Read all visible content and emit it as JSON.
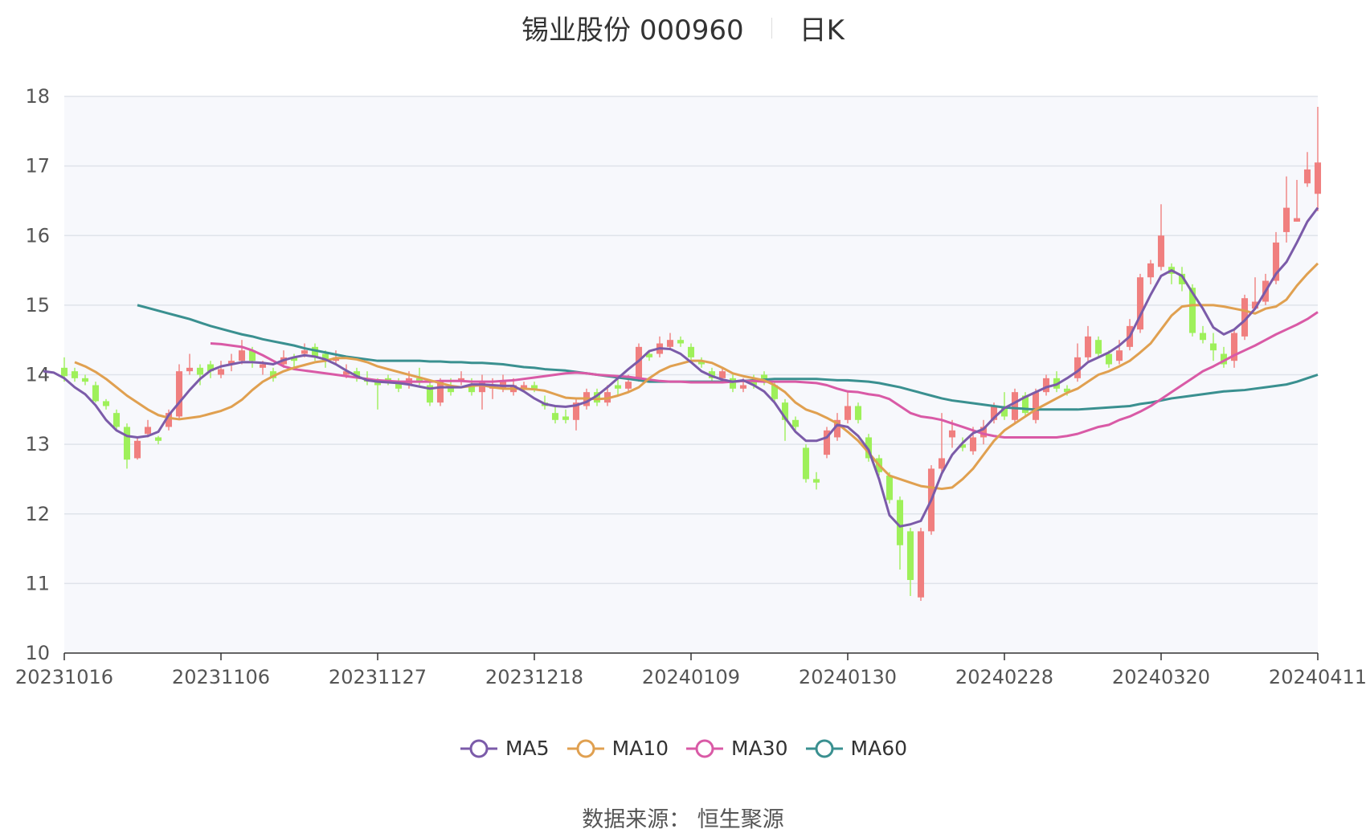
{
  "title": {
    "name": "锡业股份 000960",
    "period": "日K"
  },
  "source": "数据来源： 恒生聚源",
  "colors": {
    "up": "#f07f7f",
    "down": "#9ef05a",
    "MA5": "#7b5ba9",
    "MA10": "#e0a050",
    "MA30": "#d95aa6",
    "MA60": "#3a9090",
    "grid": "#dfe3ea",
    "plot_bg": "#f7f8fc"
  },
  "chart_data": {
    "type": "candlestick",
    "ylim": [
      10,
      18
    ],
    "yticks": [
      18,
      17,
      16,
      15,
      14,
      13,
      12,
      11,
      10
    ],
    "xticks": [
      "20231016",
      "20231106",
      "20231127",
      "20231218",
      "20240109",
      "20240130",
      "20240228",
      "20240320",
      "20240411"
    ],
    "legend": [
      {
        "name": "MA5",
        "color": "#7b5ba9"
      },
      {
        "name": "MA10",
        "color": "#e0a050"
      },
      {
        "name": "MA30",
        "color": "#d95aa6"
      },
      {
        "name": "MA60",
        "color": "#3a9090"
      }
    ],
    "candles": [
      [
        14.1,
        13.98,
        14.25,
        13.9
      ],
      [
        14.05,
        13.95,
        14.1,
        13.9
      ],
      [
        13.95,
        13.9,
        14.0,
        13.85
      ],
      [
        13.85,
        13.62,
        13.9,
        13.6
      ],
      [
        13.62,
        13.55,
        13.65,
        13.5
      ],
      [
        13.45,
        13.25,
        13.5,
        13.2
      ],
      [
        13.25,
        12.78,
        13.3,
        12.65
      ],
      [
        12.8,
        13.05,
        13.1,
        12.78
      ],
      [
        13.15,
        13.25,
        13.35,
        13.1
      ],
      [
        13.1,
        13.05,
        13.12,
        13.0
      ],
      [
        13.25,
        13.45,
        13.5,
        13.2
      ],
      [
        13.4,
        14.05,
        14.15,
        13.35
      ],
      [
        14.05,
        14.1,
        14.3,
        14.0
      ],
      [
        14.1,
        14.0,
        14.15,
        13.85
      ],
      [
        14.15,
        14.05,
        14.2,
        13.95
      ],
      [
        14.0,
        14.08,
        14.2,
        13.95
      ],
      [
        14.15,
        14.2,
        14.3,
        14.05
      ],
      [
        14.2,
        14.35,
        14.5,
        14.15
      ],
      [
        14.35,
        14.2,
        14.4,
        14.1
      ],
      [
        14.1,
        14.15,
        14.2,
        14.0
      ],
      [
        14.05,
        13.95,
        14.1,
        13.9
      ],
      [
        14.15,
        14.25,
        14.35,
        14.1
      ],
      [
        14.25,
        14.2,
        14.3,
        14.1
      ],
      [
        14.3,
        14.35,
        14.45,
        14.25
      ],
      [
        14.4,
        14.25,
        14.45,
        14.2
      ],
      [
        14.3,
        14.2,
        14.35,
        14.1
      ],
      [
        14.2,
        14.25,
        14.35,
        14.15
      ],
      [
        14.0,
        14.05,
        14.15,
        13.95
      ],
      [
        14.05,
        13.95,
        14.1,
        13.9
      ],
      [
        13.95,
        13.9,
        14.05,
        13.85
      ],
      [
        13.9,
        13.85,
        13.95,
        13.5
      ],
      [
        13.95,
        13.9,
        14.0,
        13.85
      ],
      [
        13.9,
        13.8,
        13.95,
        13.75
      ],
      [
        13.85,
        13.95,
        14.05,
        13.8
      ],
      [
        13.95,
        13.9,
        14.1,
        13.85
      ],
      [
        13.85,
        13.6,
        13.9,
        13.55
      ],
      [
        13.6,
        13.9,
        13.95,
        13.55
      ],
      [
        13.85,
        13.75,
        13.95,
        13.7
      ],
      [
        13.9,
        13.95,
        14.05,
        13.85
      ],
      [
        13.85,
        13.75,
        13.95,
        13.7
      ],
      [
        13.75,
        13.9,
        14.0,
        13.5
      ],
      [
        13.8,
        13.85,
        13.95,
        13.65
      ],
      [
        13.8,
        13.9,
        14.0,
        13.75
      ],
      [
        13.75,
        13.85,
        13.95,
        13.7
      ],
      [
        13.8,
        13.85,
        13.9,
        13.75
      ],
      [
        13.85,
        13.8,
        13.9,
        13.75
      ],
      [
        13.6,
        13.55,
        13.7,
        13.5
      ],
      [
        13.45,
        13.35,
        13.55,
        13.3
      ],
      [
        13.4,
        13.35,
        13.5,
        13.3
      ],
      [
        13.35,
        13.6,
        13.65,
        13.2
      ],
      [
        13.55,
        13.75,
        13.8,
        13.5
      ],
      [
        13.75,
        13.6,
        13.8,
        13.55
      ],
      [
        13.6,
        13.75,
        13.85,
        13.55
      ],
      [
        13.85,
        13.8,
        13.95,
        13.7
      ],
      [
        13.8,
        13.9,
        14.0,
        13.75
      ],
      [
        13.95,
        14.4,
        14.45,
        13.9
      ],
      [
        14.3,
        14.25,
        14.35,
        14.2
      ],
      [
        14.3,
        14.45,
        14.55,
        14.25
      ],
      [
        14.4,
        14.5,
        14.6,
        14.35
      ],
      [
        14.5,
        14.45,
        14.55,
        14.4
      ],
      [
        14.4,
        14.25,
        14.45,
        14.2
      ],
      [
        14.2,
        14.15,
        14.25,
        14.1
      ],
      [
        14.05,
        13.95,
        14.1,
        13.9
      ],
      [
        13.95,
        14.05,
        14.1,
        13.9
      ],
      [
        13.95,
        13.8,
        14.0,
        13.75
      ],
      [
        13.8,
        13.85,
        13.95,
        13.75
      ],
      [
        13.9,
        13.85,
        14.0,
        13.8
      ],
      [
        14.0,
        13.9,
        14.05,
        13.85
      ],
      [
        13.85,
        13.65,
        13.9,
        13.6
      ],
      [
        13.6,
        13.35,
        13.65,
        13.05
      ],
      [
        13.35,
        13.25,
        13.4,
        13.2
      ],
      [
        12.95,
        12.5,
        13.0,
        12.45
      ],
      [
        12.5,
        12.45,
        12.6,
        12.35
      ],
      [
        12.85,
        13.2,
        13.25,
        12.8
      ],
      [
        13.1,
        13.35,
        13.45,
        13.05
      ],
      [
        13.35,
        13.55,
        13.75,
        13.3
      ],
      [
        13.55,
        13.35,
        13.6,
        13.3
      ],
      [
        13.1,
        12.8,
        13.15,
        12.75
      ],
      [
        12.8,
        12.6,
        12.85,
        12.55
      ],
      [
        12.55,
        12.2,
        12.6,
        12.15
      ],
      [
        12.2,
        11.55,
        12.25,
        11.2
      ],
      [
        11.75,
        11.05,
        11.8,
        10.82
      ],
      [
        10.8,
        11.75,
        11.8,
        10.75
      ],
      [
        11.75,
        12.65,
        12.7,
        11.7
      ],
      [
        12.65,
        12.8,
        13.45,
        12.6
      ],
      [
        13.1,
        13.2,
        13.35,
        12.95
      ],
      [
        13.0,
        12.95,
        13.1,
        12.9
      ],
      [
        12.9,
        13.1,
        13.25,
        12.85
      ],
      [
        13.1,
        13.25,
        13.35,
        13.0
      ],
      [
        13.35,
        13.55,
        13.6,
        13.3
      ],
      [
        13.55,
        13.4,
        13.75,
        13.35
      ],
      [
        13.35,
        13.75,
        13.8,
        13.3
      ],
      [
        13.7,
        13.45,
        13.75,
        13.4
      ],
      [
        13.35,
        13.75,
        13.8,
        13.3
      ],
      [
        13.75,
        13.95,
        14.0,
        13.7
      ],
      [
        13.95,
        13.8,
        14.05,
        13.75
      ],
      [
        13.8,
        13.75,
        13.85,
        13.7
      ],
      [
        13.95,
        14.25,
        14.45,
        13.9
      ],
      [
        14.25,
        14.55,
        14.7,
        14.2
      ],
      [
        14.5,
        14.3,
        14.55,
        14.25
      ],
      [
        14.3,
        14.15,
        14.35,
        14.1
      ],
      [
        14.2,
        14.35,
        14.5,
        14.15
      ],
      [
        14.4,
        14.7,
        14.8,
        14.35
      ],
      [
        14.65,
        15.4,
        15.45,
        14.6
      ],
      [
        15.4,
        15.6,
        15.65,
        15.3
      ],
      [
        15.55,
        16.0,
        16.45,
        15.5
      ],
      [
        15.55,
        15.45,
        15.6,
        15.3
      ],
      [
        15.45,
        15.3,
        15.55,
        15.2
      ],
      [
        15.25,
        14.6,
        15.3,
        14.55
      ],
      [
        14.6,
        14.5,
        14.7,
        14.45
      ],
      [
        14.45,
        14.35,
        14.6,
        14.2
      ],
      [
        14.3,
        14.15,
        14.4,
        14.1
      ],
      [
        14.2,
        14.6,
        14.65,
        14.1
      ],
      [
        14.55,
        15.1,
        15.15,
        14.5
      ],
      [
        14.95,
        15.05,
        15.4,
        14.95
      ],
      [
        15.05,
        15.35,
        15.45,
        15.0
      ],
      [
        15.35,
        15.9,
        16.05,
        15.3
      ],
      [
        16.05,
        16.4,
        16.85,
        15.9
      ],
      [
        16.2,
        16.25,
        16.8,
        16.2
      ],
      [
        16.75,
        16.95,
        17.2,
        16.7
      ],
      [
        16.6,
        17.05,
        17.85,
        16.35
      ]
    ],
    "MA5": [
      14.05,
      14.03,
      13.95,
      13.82,
      13.72,
      13.56,
      13.35,
      13.2,
      13.12,
      13.1,
      13.12,
      13.18,
      13.42,
      13.6,
      13.78,
      13.94,
      14.06,
      14.12,
      14.15,
      14.18,
      14.18,
      14.17,
      14.15,
      14.21,
      14.25,
      14.28,
      14.26,
      14.22,
      14.15,
      14.06,
      13.98,
      13.92,
      13.9,
      13.89,
      13.88,
      13.86,
      13.83,
      13.8,
      13.82,
      13.82,
      13.82,
      13.86,
      13.86,
      13.85,
      13.84,
      13.84,
      13.76,
      13.66,
      13.58,
      13.55,
      13.54,
      13.56,
      13.61,
      13.7,
      13.82,
      13.95,
      14.08,
      14.2,
      14.34,
      14.38,
      14.37,
      14.3,
      14.18,
      14.05,
      13.98,
      13.93,
      13.9,
      13.92,
      13.85,
      13.76,
      13.6,
      13.38,
      13.18,
      13.05,
      13.05,
      13.1,
      13.28,
      13.25,
      13.12,
      12.92,
      12.5,
      11.98,
      11.82,
      11.85,
      11.9,
      12.2,
      12.58,
      12.85,
      13.02,
      13.16,
      13.22,
      13.38,
      13.52,
      13.6,
      13.68,
      13.75,
      13.82,
      13.86,
      13.95,
      14.05,
      14.18,
      14.25,
      14.32,
      14.42,
      14.55,
      14.85,
      15.15,
      15.42,
      15.5,
      15.42,
      15.18,
      14.95,
      14.68,
      14.58,
      14.65,
      14.78,
      14.95,
      15.2,
      15.45,
      15.62,
      15.9,
      16.2,
      16.4
    ],
    "MA10": [
      14.18,
      14.12,
      14.04,
      13.94,
      13.82,
      13.7,
      13.6,
      13.5,
      13.42,
      13.38,
      13.36,
      13.38,
      13.4,
      13.44,
      13.48,
      13.54,
      13.64,
      13.78,
      13.9,
      13.98,
      14.05,
      14.1,
      14.14,
      14.18,
      14.2,
      14.24,
      14.24,
      14.22,
      14.18,
      14.12,
      14.08,
      14.04,
      14.0,
      13.96,
      13.92,
      13.88,
      13.84,
      13.82,
      13.84,
      13.85,
      13.82,
      13.8,
      13.8,
      13.8,
      13.79,
      13.77,
      13.72,
      13.67,
      13.66,
      13.66,
      13.65,
      13.66,
      13.7,
      13.75,
      13.82,
      13.95,
      14.05,
      14.12,
      14.16,
      14.2,
      14.2,
      14.17,
      14.1,
      14.02,
      13.98,
      13.95,
      13.92,
      13.85,
      13.75,
      13.6,
      13.5,
      13.45,
      13.38,
      13.3,
      13.18,
      13.05,
      12.88,
      12.7,
      12.55,
      12.5,
      12.45,
      12.4,
      12.38,
      12.36,
      12.38,
      12.5,
      12.65,
      12.85,
      13.05,
      13.2,
      13.3,
      13.4,
      13.5,
      13.58,
      13.66,
      13.74,
      13.8,
      13.9,
      14.0,
      14.05,
      14.12,
      14.2,
      14.32,
      14.45,
      14.65,
      14.85,
      14.98,
      15.0,
      15.0,
      15.0,
      14.98,
      14.95,
      14.92,
      14.88,
      14.95,
      14.98,
      15.08,
      15.28,
      15.45,
      15.6
    ],
    "MA30": [
      14.45,
      14.44,
      14.42,
      14.4,
      14.35,
      14.28,
      14.2,
      14.12,
      14.08,
      14.06,
      14.04,
      14.02,
      14.0,
      13.98,
      13.96,
      13.94,
      13.92,
      13.91,
      13.9,
      13.9,
      13.9,
      13.9,
      13.91,
      13.91,
      13.91,
      13.9,
      13.9,
      13.9,
      13.91,
      13.92,
      13.94,
      13.96,
      13.98,
      14.0,
      14.02,
      14.03,
      14.02,
      14.0,
      13.99,
      13.98,
      13.97,
      13.95,
      13.93,
      13.91,
      13.9,
      13.9,
      13.89,
      13.89,
      13.89,
      13.89,
      13.9,
      13.91,
      13.91,
      13.9,
      13.9,
      13.9,
      13.9,
      13.89,
      13.88,
      13.85,
      13.8,
      13.76,
      13.75,
      13.72,
      13.7,
      13.65,
      13.55,
      13.45,
      13.4,
      13.38,
      13.35,
      13.3,
      13.25,
      13.2,
      13.15,
      13.12,
      13.1,
      13.1,
      13.1,
      13.1,
      13.1,
      13.1,
      13.12,
      13.15,
      13.2,
      13.25,
      13.28,
      13.35,
      13.4,
      13.47,
      13.55,
      13.65,
      13.75,
      13.85,
      13.95,
      14.05,
      14.12,
      14.2,
      14.28,
      14.35,
      14.42,
      14.5,
      14.58,
      14.65,
      14.72,
      14.8,
      14.9
    ],
    "MA60": [
      15.0,
      14.96,
      14.92,
      14.88,
      14.84,
      14.8,
      14.75,
      14.7,
      14.66,
      14.62,
      14.58,
      14.55,
      14.51,
      14.48,
      14.45,
      14.42,
      14.38,
      14.35,
      14.32,
      14.29,
      14.26,
      14.24,
      14.22,
      14.2,
      14.2,
      14.2,
      14.2,
      14.2,
      14.19,
      14.19,
      14.18,
      14.18,
      14.17,
      14.17,
      14.16,
      14.15,
      14.13,
      14.11,
      14.1,
      14.08,
      14.07,
      14.06,
      14.04,
      14.02,
      14.0,
      13.98,
      13.96,
      13.94,
      13.92,
      13.9,
      13.9,
      13.9,
      13.9,
      13.9,
      13.9,
      13.9,
      13.9,
      13.9,
      13.91,
      13.92,
      13.93,
      13.94,
      13.94,
      13.94,
      13.94,
      13.94,
      13.93,
      13.92,
      13.92,
      13.91,
      13.9,
      13.88,
      13.85,
      13.82,
      13.78,
      13.74,
      13.7,
      13.66,
      13.63,
      13.61,
      13.59,
      13.57,
      13.55,
      13.53,
      13.52,
      13.51,
      13.5,
      13.5,
      13.5,
      13.5,
      13.5,
      13.51,
      13.52,
      13.53,
      13.54,
      13.55,
      13.58,
      13.6,
      13.63,
      13.66,
      13.68,
      13.7,
      13.72,
      13.74,
      13.76,
      13.77,
      13.78,
      13.8,
      13.82,
      13.84,
      13.86,
      13.9,
      13.95,
      14.0
    ]
  }
}
